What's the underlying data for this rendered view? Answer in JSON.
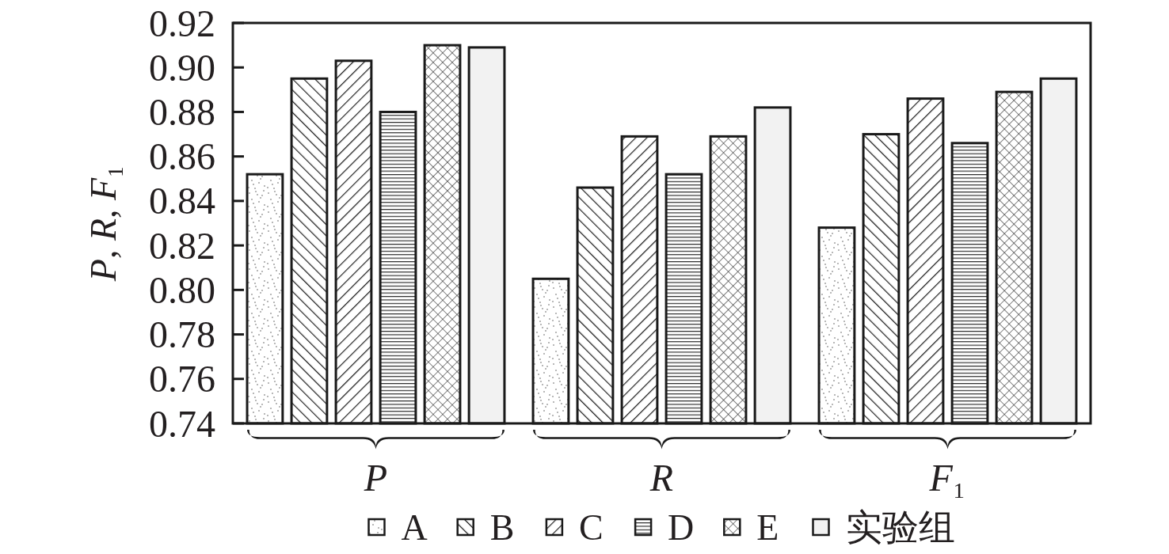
{
  "chart_data": {
    "type": "bar",
    "ylabel": "P, R, F₁",
    "categories": [
      "P",
      "R",
      "F₁"
    ],
    "series": [
      {
        "name": "A",
        "color": "#1a1a1a",
        "values": [
          0.852,
          0.805,
          0.828
        ]
      },
      {
        "name": "B",
        "color": "#1a1a1a",
        "values": [
          0.895,
          0.846,
          0.87
        ]
      },
      {
        "name": "C",
        "color": "#1a1a1a",
        "values": [
          0.903,
          0.869,
          0.886
        ]
      },
      {
        "name": "D",
        "color": "#1a1a1a",
        "values": [
          0.88,
          0.852,
          0.866
        ]
      },
      {
        "name": "E",
        "color": "#1a1a1a",
        "values": [
          0.91,
          0.869,
          0.889
        ]
      },
      {
        "name": "实验组",
        "color": "#f2f2f2",
        "values": [
          0.909,
          0.882,
          0.895
        ]
      }
    ],
    "ylim": [
      0.74,
      0.92
    ],
    "yticks": [
      0.74,
      0.76,
      0.78,
      {
        "value": 0.8,
        "label": "0.80"
      },
      0.82,
      0.84,
      0.86,
      0.88,
      {
        "value": 0.9,
        "label": "0.90"
      },
      0.92
    ],
    "legend": "bottom"
  }
}
